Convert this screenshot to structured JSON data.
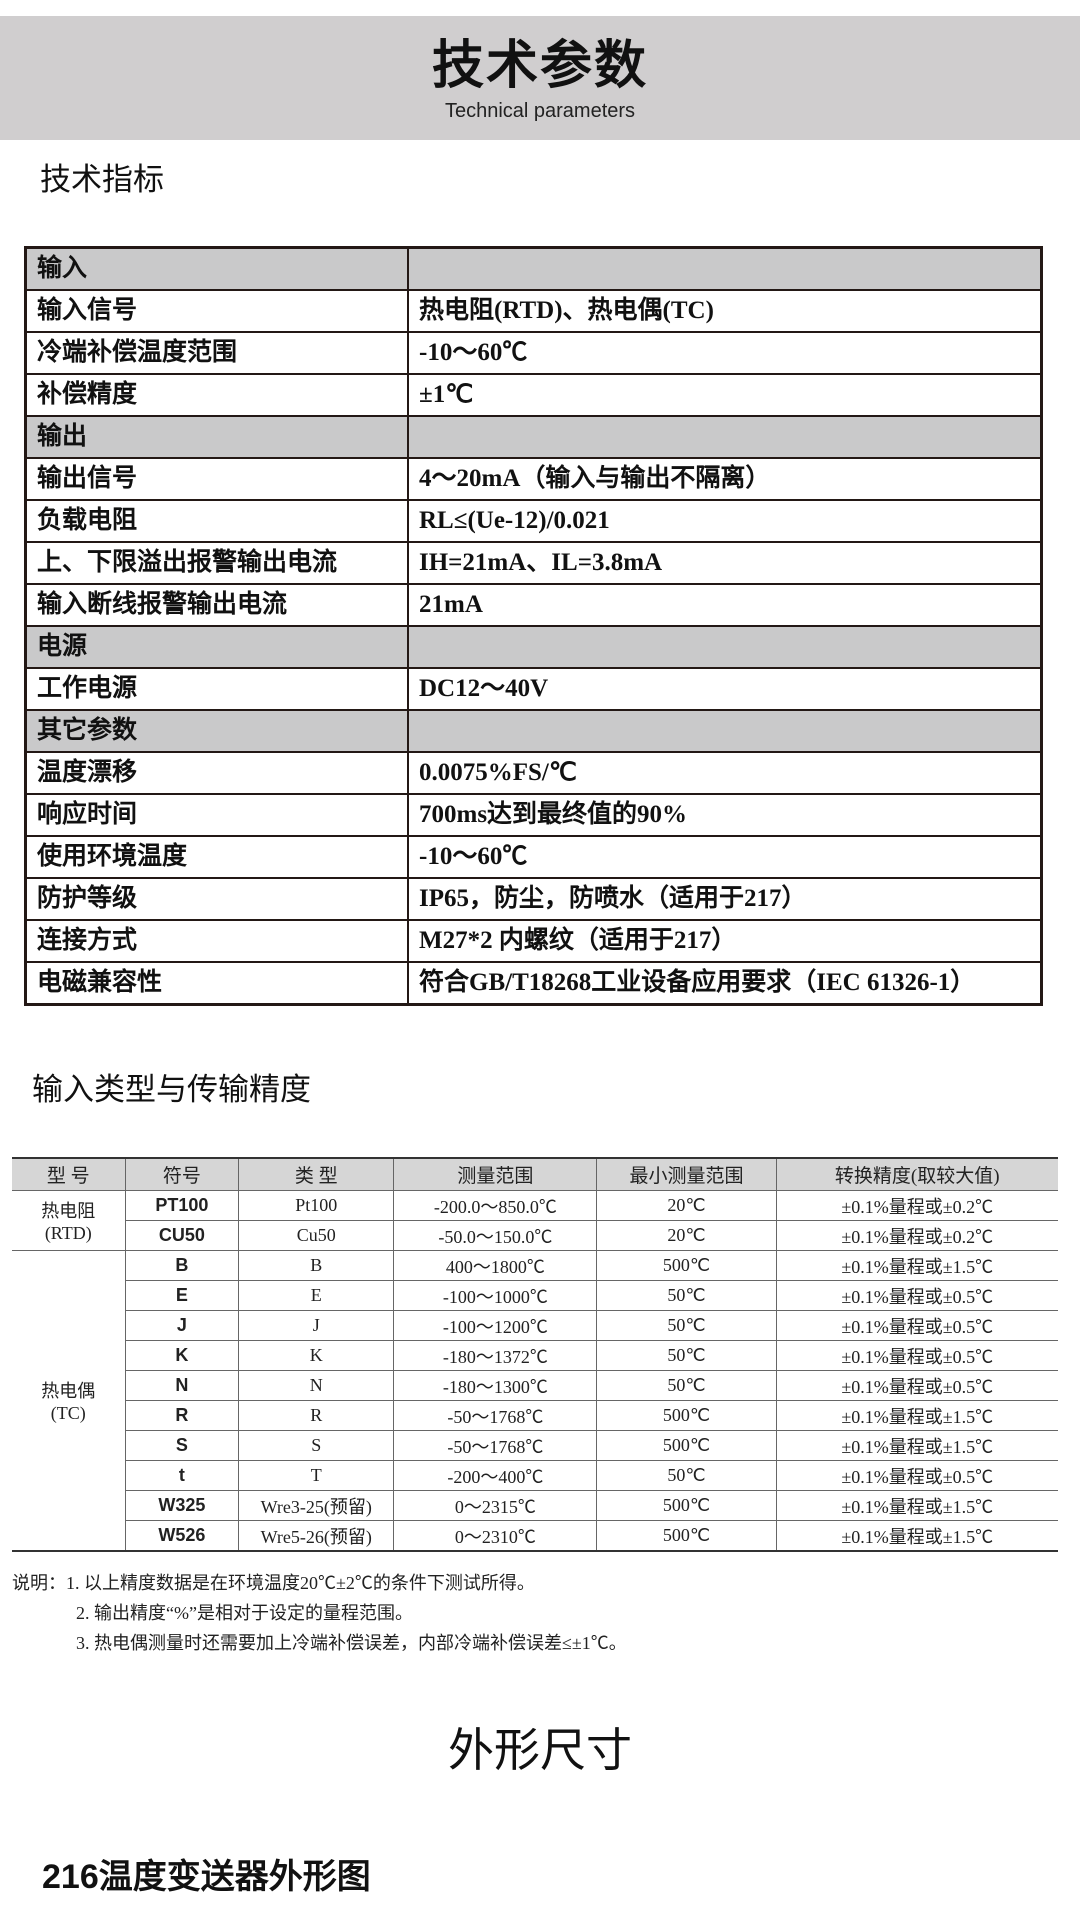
{
  "header": {
    "title": "技术参数",
    "subtitle": "Technical parameters"
  },
  "spec_section": {
    "title": "技术指标",
    "rows": [
      {
        "key": "输入",
        "value": "",
        "section": true
      },
      {
        "key": "输入信号",
        "value": "热电阻(RTD)、热电偶(TC)"
      },
      {
        "key": "冷端补偿温度范围",
        "value": "-10～60℃"
      },
      {
        "key": "补偿精度",
        "value": "±1℃"
      },
      {
        "key": "输出",
        "value": "",
        "section": true
      },
      {
        "key": "输出信号",
        "value": "4～20mA（输入与输出不隔离）"
      },
      {
        "key": "负载电阻",
        "value": "RL≤(Ue-12)/0.021"
      },
      {
        "key": "上、下限溢出报警输出电流",
        "value": "IH=21mA、IL=3.8mA"
      },
      {
        "key": "输入断线报警输出电流",
        "value": "21mA"
      },
      {
        "key": "电源",
        "value": "",
        "section": true
      },
      {
        "key": "工作电源",
        "value": "DC12～40V"
      },
      {
        "key": "其它参数",
        "value": "",
        "section": true
      },
      {
        "key": "温度漂移",
        "value": "0.0075%FS/℃"
      },
      {
        "key": "响应时间",
        "value": "700ms达到最终值的90%"
      },
      {
        "key": "使用环境温度",
        "value": "-10～60℃"
      },
      {
        "key": "防护等级",
        "value": "IP65，防尘，防喷水（适用于217）"
      },
      {
        "key": "连接方式",
        "value": "M27*2 内螺纹（适用于217）"
      },
      {
        "key": "电磁兼容性",
        "value": "符合GB/T18268工业设备应用要求（IEC 61326-1）"
      }
    ]
  },
  "types_section": {
    "title": "输入类型与传输精度",
    "headers": [
      "型 号",
      "符号",
      "类 型",
      "测量范围",
      "最小测量范围",
      "转换精度(取较大值)"
    ],
    "groups": [
      {
        "name": "热电阻",
        "sub": "(RTD)",
        "rows": [
          [
            "PT100",
            "Pt100",
            "-200.0～850.0℃",
            "20℃",
            "±0.1%量程或±0.2℃"
          ],
          [
            "CU50",
            "Cu50",
            "-50.0～150.0℃",
            "20℃",
            "±0.1%量程或±0.2℃"
          ]
        ]
      },
      {
        "name": "热电偶",
        "sub": "(TC)",
        "rows": [
          [
            "B",
            "B",
            "400～1800℃",
            "500℃",
            "±0.1%量程或±1.5℃"
          ],
          [
            "E",
            "E",
            "-100～1000℃",
            "50℃",
            "±0.1%量程或±0.5℃"
          ],
          [
            "J",
            "J",
            "-100～1200℃",
            "50℃",
            "±0.1%量程或±0.5℃"
          ],
          [
            "K",
            "K",
            "-180～1372℃",
            "50℃",
            "±0.1%量程或±0.5℃"
          ],
          [
            "N",
            "N",
            "-180～1300℃",
            "50℃",
            "±0.1%量程或±0.5℃"
          ],
          [
            "R",
            "R",
            "-50～1768℃",
            "500℃",
            "±0.1%量程或±1.5℃"
          ],
          [
            "S",
            "S",
            "-50～1768℃",
            "500℃",
            "±0.1%量程或±1.5℃"
          ],
          [
            "t",
            "T",
            "-200～400℃",
            "50℃",
            "±0.1%量程或±0.5℃"
          ],
          [
            "W325",
            "Wre3-25(预留)",
            "0～2315℃",
            "500℃",
            "±0.1%量程或±1.5℃"
          ],
          [
            "W526",
            "Wre5-26(预留)",
            "0～2310℃",
            "500℃",
            "±0.1%量程或±1.5℃"
          ]
        ]
      }
    ]
  },
  "notes": [
    "说明：1. 以上精度数据是在环境温度20℃±2℃的条件下测试所得。",
    "2. 输出精度“%”是相对于设定的量程范围。",
    "3. 热电偶测量时还需要加上冷端补偿误差，内部冷端补偿误差≤±1℃。"
  ],
  "dimensions": {
    "title": "外形尺寸",
    "subtitle": "216温度变送器外形图"
  },
  "colors": {
    "banner": "#d0cecf",
    "section_row": "#c9c9ca",
    "table_header": "#d6d6d6"
  }
}
